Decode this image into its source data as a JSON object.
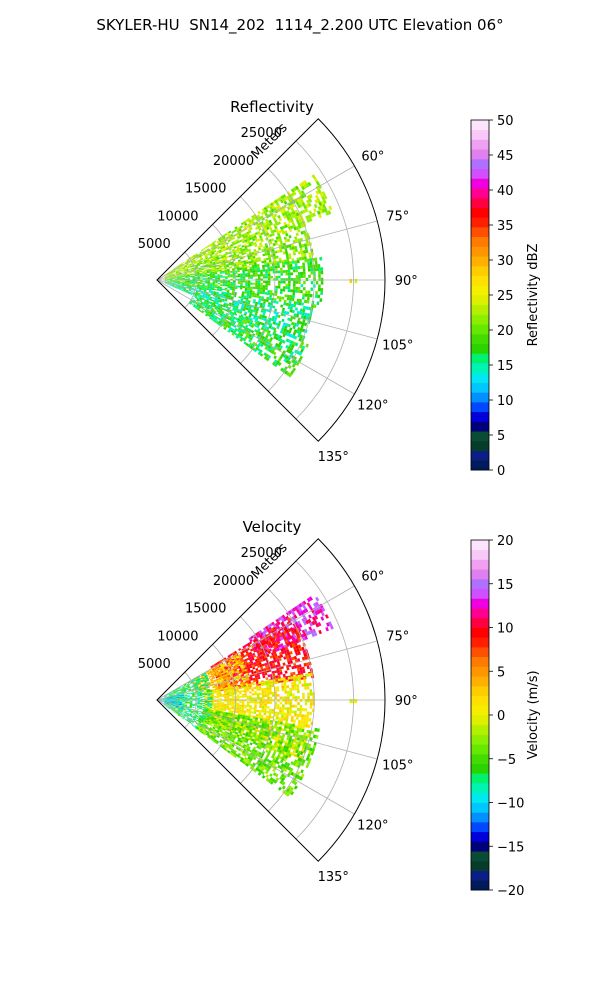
{
  "figure_title": "SKYLER-HU  SN14_202  1114_2.200 UTC Elevation 06°",
  "chart_data": [
    {
      "type": "polar-sector",
      "title": "Reflectivity",
      "radial_axis_label": "Meters",
      "radial_ticks": [
        "5000",
        "10000",
        "15000",
        "20000",
        "25000"
      ],
      "radial_tick_values": [
        5000,
        10000,
        15000,
        20000,
        25000
      ],
      "radial_range": [
        0,
        29000
      ],
      "azimuth_range_deg": [
        45,
        135
      ],
      "azimuth_ticks": [
        "60°",
        "75°",
        "90°",
        "105°",
        "120°",
        "135°"
      ],
      "azimuth_tick_values": [
        60,
        75,
        90,
        105,
        120,
        135
      ],
      "grid": true,
      "colorbar": {
        "label": "Reflectivity dBZ",
        "range": [
          0,
          50
        ],
        "ticks": [
          "0",
          "5",
          "10",
          "15",
          "20",
          "25",
          "30",
          "35",
          "40",
          "45",
          "50"
        ],
        "tick_values": [
          0,
          5,
          10,
          15,
          20,
          25,
          30,
          35,
          40,
          45,
          50
        ],
        "colors": [
          "#001a5c",
          "#0a1e86",
          "#063d2a",
          "#0a4c33",
          "#00007a",
          "#0000d8",
          "#0047ff",
          "#0090ff",
          "#00c8ff",
          "#00e8f0",
          "#00f5b4",
          "#00f070",
          "#2ad400",
          "#44dc00",
          "#66e800",
          "#8cee00",
          "#b4f000",
          "#dcf000",
          "#f5ee00",
          "#ffe000",
          "#ffcc00",
          "#ffb000",
          "#ff9600",
          "#ff7a00",
          "#ff5000",
          "#ff1e00",
          "#ff0000",
          "#ff0040",
          "#ff0090",
          "#f000e0",
          "#d050ff",
          "#b070ff",
          "#e080f0",
          "#f0a0f0",
          "#f8c8f8",
          "#fce4fc"
        ]
      },
      "echo_data": [
        {
          "azimuth_deg": [
            56,
            69
          ],
          "range_m": [
            1000,
            24000
          ],
          "dbz_typical": 22
        },
        {
          "azimuth_deg": [
            69,
            82
          ],
          "range_m": [
            1000,
            20000
          ],
          "dbz_typical": 21
        },
        {
          "azimuth_deg": [
            82,
            100
          ],
          "range_m": [
            1000,
            21000
          ],
          "dbz_typical": 18
        },
        {
          "azimuth_deg": [
            100,
            113
          ],
          "range_m": [
            1000,
            20000
          ],
          "dbz_typical": 16
        },
        {
          "azimuth_deg": [
            113,
            126
          ],
          "range_m": [
            5000,
            21000
          ],
          "dbz_typical": 17
        },
        {
          "azimuth_deg": [
            89.7,
            90.3
          ],
          "range_m": [
            24500,
            25200
          ],
          "dbz_typical": 27
        }
      ]
    },
    {
      "type": "polar-sector",
      "title": "Velocity",
      "radial_axis_label": "Meters",
      "radial_ticks": [
        "5000",
        "10000",
        "15000",
        "20000",
        "25000"
      ],
      "radial_tick_values": [
        5000,
        10000,
        15000,
        20000,
        25000
      ],
      "radial_range": [
        0,
        29000
      ],
      "azimuth_range_deg": [
        45,
        135
      ],
      "azimuth_ticks": [
        "60°",
        "75°",
        "90°",
        "105°",
        "120°",
        "135°"
      ],
      "azimuth_tick_values": [
        60,
        75,
        90,
        105,
        120,
        135
      ],
      "grid": true,
      "colorbar": {
        "label": "Velocity (m/s)",
        "range": [
          -20,
          20
        ],
        "ticks": [
          "−20",
          "−15",
          "−10",
          "−5",
          "0",
          "5",
          "10",
          "15",
          "20"
        ],
        "tick_values": [
          -20,
          -15,
          -10,
          -5,
          0,
          5,
          10,
          15,
          20
        ],
        "colors": [
          "#001a5c",
          "#0a1e86",
          "#063d2a",
          "#0a4c33",
          "#00007a",
          "#0000d8",
          "#0047ff",
          "#0090ff",
          "#00c8ff",
          "#00e8f0",
          "#00f5b4",
          "#00f070",
          "#2ad400",
          "#44dc00",
          "#66e800",
          "#8cee00",
          "#b4f000",
          "#dcf000",
          "#f5ee00",
          "#ffe000",
          "#ffcc00",
          "#ffb000",
          "#ff9600",
          "#ff7a00",
          "#ff5000",
          "#ff1e00",
          "#ff0000",
          "#ff0040",
          "#ff0090",
          "#f000e0",
          "#d050ff",
          "#b070ff",
          "#e080f0",
          "#f0a0f0",
          "#f8c8f8",
          "#fce4fc"
        ]
      },
      "echo_data": [
        {
          "azimuth_deg": [
            56,
            68
          ],
          "range_m": [
            14000,
            24000
          ],
          "velocity_ms": 13
        },
        {
          "azimuth_deg": [
            58,
            82
          ],
          "range_m": [
            8000,
            20000
          ],
          "velocity_ms": 9
        },
        {
          "azimuth_deg": [
            60,
            80
          ],
          "range_m": [
            5000,
            12000
          ],
          "velocity_ms": 3
        },
        {
          "azimuth_deg": [
            80,
            113
          ],
          "range_m": [
            6000,
            20000
          ],
          "velocity_ms": 1
        },
        {
          "azimuth_deg": [
            100,
            126
          ],
          "range_m": [
            6000,
            21000
          ],
          "velocity_ms": -4
        },
        {
          "azimuth_deg": [
            60,
            126
          ],
          "range_m": [
            1000,
            7000
          ],
          "velocity_ms": -7
        },
        {
          "azimuth_deg": [
            75,
            110
          ],
          "range_m": [
            0,
            3500
          ],
          "velocity_ms": -10
        },
        {
          "azimuth_deg": [
            89.7,
            90.3
          ],
          "range_m": [
            24500,
            25200
          ],
          "velocity_ms": 1
        }
      ]
    }
  ]
}
